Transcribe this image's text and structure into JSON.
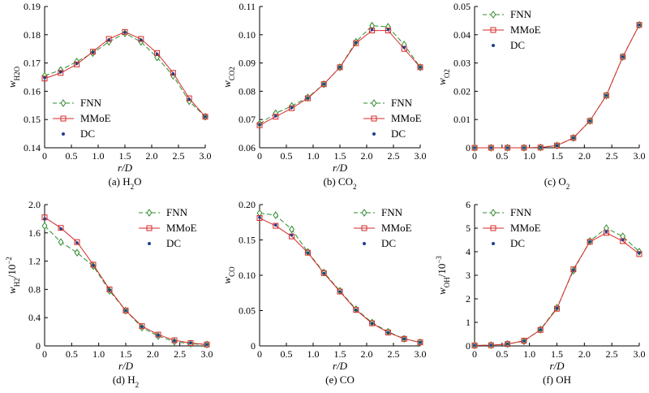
{
  "colors": {
    "fnn": "#2e8b2e",
    "mmoe": "#d62a2a",
    "dc": "#1f3f8f",
    "axis": "#000000"
  },
  "legend": {
    "fnn": "FNN",
    "mmoe": "MMoE",
    "dc": "DC"
  },
  "chart_data": [
    {
      "type": "line",
      "caption": "(a) H",
      "caption_sub": "2",
      "caption_tail": "O",
      "ylabel_main": "w",
      "ylabel_sub": "H2O",
      "ylabel_tail": "",
      "xlabel": "r/D",
      "legend_position": "bottom-left",
      "xlim": [
        0,
        3.0
      ],
      "ylim": [
        0.14,
        0.19
      ],
      "xticks": [
        "0",
        "0.5",
        "1.0",
        "1.5",
        "2.0",
        "2.5",
        "3.0"
      ],
      "yticks": [
        "0.14",
        "0.15",
        "0.16",
        "0.17",
        "0.18",
        "0.19"
      ],
      "x": [
        0,
        0.3,
        0.6,
        0.9,
        1.2,
        1.5,
        1.8,
        2.1,
        2.4,
        2.7,
        3.0
      ],
      "series": [
        {
          "name": "FNN",
          "values": [
            0.1655,
            0.1675,
            0.1705,
            0.1735,
            0.1775,
            0.1805,
            0.1775,
            0.172,
            0.1655,
            0.1565,
            0.151
          ]
        },
        {
          "name": "MMoE",
          "values": [
            0.1645,
            0.1665,
            0.1695,
            0.174,
            0.1785,
            0.181,
            0.1785,
            0.1735,
            0.1665,
            0.1575,
            0.151
          ]
        },
        {
          "name": "DC",
          "values": [
            0.1648,
            0.1668,
            0.1698,
            0.1738,
            0.1782,
            0.1808,
            0.1782,
            0.1732,
            0.1662,
            0.1572,
            0.151
          ]
        }
      ]
    },
    {
      "type": "line",
      "caption": "(b) CO",
      "caption_sub": "2",
      "caption_tail": "",
      "ylabel_main": "w",
      "ylabel_sub": "CO2",
      "ylabel_tail": "",
      "xlabel": "r/D",
      "legend_position": "bottom-right",
      "xlim": [
        0,
        3.0
      ],
      "ylim": [
        0.06,
        0.11
      ],
      "xticks": [
        "0",
        "0.5",
        "1.0",
        "1.5",
        "2.0",
        "2.5",
        "3.0"
      ],
      "yticks": [
        "0.06",
        "0.07",
        "0.08",
        "0.09",
        "0.10",
        "0.11"
      ],
      "x": [
        0,
        0.3,
        0.6,
        0.9,
        1.2,
        1.5,
        1.8,
        2.1,
        2.4,
        2.7,
        3.0
      ],
      "series": [
        {
          "name": "FNN",
          "values": [
            0.0685,
            0.0722,
            0.0748,
            0.0778,
            0.0825,
            0.0885,
            0.0975,
            0.1032,
            0.1028,
            0.0965,
            0.0885
          ]
        },
        {
          "name": "MMoE",
          "values": [
            0.068,
            0.071,
            0.074,
            0.0775,
            0.0825,
            0.0885,
            0.097,
            0.1015,
            0.1015,
            0.095,
            0.0885
          ]
        },
        {
          "name": "DC",
          "values": [
            0.0682,
            0.0712,
            0.0742,
            0.0776,
            0.0825,
            0.0885,
            0.0972,
            0.1018,
            0.1018,
            0.0955,
            0.0885
          ]
        }
      ]
    },
    {
      "type": "line",
      "caption": "(c) O",
      "caption_sub": "2",
      "caption_tail": "",
      "ylabel_main": "w",
      "ylabel_sub": "O2",
      "ylabel_tail": "",
      "xlabel": "",
      "legend_position": "top-left",
      "xlim": [
        0,
        3.0
      ],
      "ylim": [
        0,
        0.05
      ],
      "xticks": [
        "0",
        "0.5",
        "1.0",
        "1.5",
        "2.0",
        "2.5",
        "3.0"
      ],
      "yticks": [
        "0",
        "0.01",
        "0.02",
        "0.03",
        "0.04",
        "0.05"
      ],
      "x": [
        0,
        0.3,
        0.6,
        0.9,
        1.2,
        1.5,
        1.8,
        2.1,
        2.4,
        2.7,
        3.0
      ],
      "series": [
        {
          "name": "FNN",
          "values": [
            0,
            0,
            0,
            0,
            0.0001,
            0.0008,
            0.0035,
            0.0095,
            0.0185,
            0.0322,
            0.0435
          ]
        },
        {
          "name": "MMoE",
          "values": [
            0,
            0,
            0,
            0,
            0.0001,
            0.0008,
            0.0035,
            0.0095,
            0.0185,
            0.0322,
            0.0435
          ]
        },
        {
          "name": "DC",
          "values": [
            0,
            0,
            0,
            0,
            0.0001,
            0.0008,
            0.0035,
            0.0095,
            0.0185,
            0.0322,
            0.0435
          ]
        }
      ]
    },
    {
      "type": "line",
      "caption": "(d) H",
      "caption_sub": "2",
      "caption_tail": "",
      "ylabel_main": "w",
      "ylabel_sub": "H2",
      "ylabel_tail": "/10",
      "ylabel_sup": "−2",
      "xlabel": "r/D",
      "legend_position": "top-right",
      "xlim": [
        0,
        3.0
      ],
      "ylim": [
        0,
        2.0
      ],
      "xticks": [
        "0",
        "0.5",
        "1.0",
        "1.5",
        "2.0",
        "2.5",
        "3.0"
      ],
      "yticks": [
        "0",
        "0.4",
        "0.8",
        "1.2",
        "1.6",
        "2.0"
      ],
      "x": [
        0,
        0.3,
        0.6,
        0.9,
        1.2,
        1.5,
        1.8,
        2.1,
        2.4,
        2.7,
        3.0
      ],
      "series": [
        {
          "name": "FNN",
          "values": [
            1.7,
            1.47,
            1.32,
            1.13,
            0.78,
            0.5,
            0.26,
            0.14,
            0.06,
            0.03,
            0.02
          ]
        },
        {
          "name": "MMoE",
          "values": [
            1.82,
            1.67,
            1.47,
            1.15,
            0.8,
            0.5,
            0.28,
            0.16,
            0.08,
            0.04,
            0.02
          ]
        },
        {
          "name": "DC",
          "values": [
            1.8,
            1.66,
            1.46,
            1.14,
            0.79,
            0.5,
            0.27,
            0.15,
            0.07,
            0.04,
            0.02
          ]
        }
      ]
    },
    {
      "type": "line",
      "caption": "(e) CO",
      "caption_sub": "",
      "caption_tail": "",
      "ylabel_main": "w",
      "ylabel_sub": "CO",
      "ylabel_tail": "",
      "xlabel": "r/D",
      "legend_position": "top-right",
      "xlim": [
        0,
        3.0
      ],
      "ylim": [
        0,
        0.2
      ],
      "xticks": [
        "0",
        "0.5",
        "1.0",
        "1.5",
        "2.0",
        "2.5",
        "3.0"
      ],
      "yticks": [
        "0",
        "0.05",
        "0.10",
        "0.15",
        "0.20"
      ],
      "x": [
        0,
        0.3,
        0.6,
        0.9,
        1.2,
        1.5,
        1.8,
        2.1,
        2.4,
        2.7,
        3.0
      ],
      "series": [
        {
          "name": "FNN",
          "values": [
            0.188,
            0.185,
            0.165,
            0.133,
            0.104,
            0.078,
            0.052,
            0.033,
            0.02,
            0.01,
            0.005
          ]
        },
        {
          "name": "MMoE",
          "values": [
            0.181,
            0.17,
            0.155,
            0.132,
            0.103,
            0.077,
            0.051,
            0.032,
            0.019,
            0.01,
            0.005
          ]
        },
        {
          "name": "DC",
          "values": [
            0.182,
            0.171,
            0.157,
            0.132,
            0.103,
            0.077,
            0.051,
            0.032,
            0.019,
            0.01,
            0.005
          ]
        }
      ]
    },
    {
      "type": "line",
      "caption": "(f) OH",
      "caption_sub": "",
      "caption_tail": "",
      "ylabel_main": "w",
      "ylabel_sub": "OH",
      "ylabel_tail": "/10",
      "ylabel_sup": "−3",
      "xlabel": "r/D",
      "legend_position": "top-left",
      "xlim": [
        0,
        3.0
      ],
      "ylim": [
        0,
        6
      ],
      "xticks": [
        "0",
        "0.5",
        "1.0",
        "1.5",
        "2.0",
        "2.5",
        "3.0"
      ],
      "yticks": [
        "0",
        "1",
        "2",
        "3",
        "4",
        "5",
        "6"
      ],
      "x": [
        0,
        0.3,
        0.6,
        0.9,
        1.2,
        1.5,
        1.8,
        2.1,
        2.4,
        2.7,
        3.0
      ],
      "series": [
        {
          "name": "FNN",
          "values": [
            0.02,
            0.03,
            0.08,
            0.2,
            0.7,
            1.62,
            3.2,
            4.45,
            5.0,
            4.65,
            4.0
          ]
        },
        {
          "name": "MMoE",
          "values": [
            0.02,
            0.03,
            0.08,
            0.22,
            0.68,
            1.58,
            3.25,
            4.42,
            4.8,
            4.45,
            3.9
          ]
        },
        {
          "name": "DC",
          "values": [
            0.02,
            0.03,
            0.08,
            0.21,
            0.69,
            1.6,
            3.22,
            4.43,
            4.85,
            4.5,
            3.95
          ]
        }
      ]
    }
  ]
}
